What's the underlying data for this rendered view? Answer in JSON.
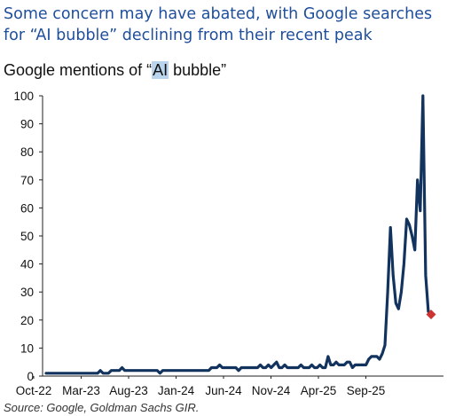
{
  "headline": "Some concern may have abated, with Google searches for “AI bubble” declining from their recent peak",
  "subtitle": {
    "prefix": "Google mentions of “",
    "highlight": "AI",
    "suffix": " bubble”"
  },
  "source": "Source: Google, Goldman Sachs GIR.",
  "colors": {
    "line": "#12335e",
    "marker": "#cc3333",
    "headline": "#1f4e9c",
    "highlight": "#b9d4ec"
  },
  "chart_data": {
    "type": "line",
    "title": "Google mentions of “AI bubble”",
    "ylim": [
      0,
      100
    ],
    "yticks": [
      0,
      10,
      20,
      30,
      40,
      50,
      60,
      70,
      80,
      90,
      100
    ],
    "xtick_labels": [
      "Oct-22",
      "Mar-23",
      "Aug-23",
      "Jan-24",
      "Jun-24",
      "Nov-24",
      "Apr-25",
      "Sep-25"
    ],
    "grid": false,
    "series": [
      {
        "points": [
          [
            0,
            1
          ],
          [
            4,
            1
          ],
          [
            8,
            1
          ],
          [
            12,
            1
          ],
          [
            16,
            1
          ],
          [
            19,
            1
          ],
          [
            20,
            2
          ],
          [
            21,
            1
          ],
          [
            23,
            1
          ],
          [
            24,
            2
          ],
          [
            27,
            2
          ],
          [
            28,
            3
          ],
          [
            29,
            2
          ],
          [
            33,
            2
          ],
          [
            38,
            2
          ],
          [
            41,
            2
          ],
          [
            42,
            1
          ],
          [
            43,
            2
          ],
          [
            47,
            2
          ],
          [
            52,
            2
          ],
          [
            58,
            2
          ],
          [
            60,
            2
          ],
          [
            61,
            3
          ],
          [
            63,
            3
          ],
          [
            64,
            4
          ],
          [
            65,
            3
          ],
          [
            68,
            3
          ],
          [
            70,
            3
          ],
          [
            71,
            2
          ],
          [
            72,
            3
          ],
          [
            75,
            3
          ],
          [
            78,
            3
          ],
          [
            79,
            4
          ],
          [
            80,
            3
          ],
          [
            81,
            3
          ],
          [
            82,
            4
          ],
          [
            83,
            3
          ],
          [
            84,
            4
          ],
          [
            85,
            5
          ],
          [
            86,
            3
          ],
          [
            87,
            3
          ],
          [
            88,
            4
          ],
          [
            89,
            3
          ],
          [
            91,
            3
          ],
          [
            93,
            3
          ],
          [
            94,
            4
          ],
          [
            95,
            3
          ],
          [
            96,
            3
          ],
          [
            97,
            3
          ],
          [
            98,
            4
          ],
          [
            99,
            3
          ],
          [
            100,
            3
          ],
          [
            101,
            4
          ],
          [
            102,
            3
          ],
          [
            103,
            3
          ],
          [
            104,
            7
          ],
          [
            105,
            4
          ],
          [
            106,
            4
          ],
          [
            107,
            5
          ],
          [
            108,
            4
          ],
          [
            109,
            4
          ],
          [
            110,
            4
          ],
          [
            111,
            5
          ],
          [
            112,
            5
          ],
          [
            113,
            3
          ],
          [
            114,
            4
          ],
          [
            116,
            4
          ],
          [
            118,
            4
          ],
          [
            119,
            6
          ],
          [
            120,
            7
          ],
          [
            122,
            7
          ],
          [
            123,
            6
          ],
          [
            124,
            8
          ],
          [
            125,
            11
          ],
          [
            126,
            30
          ],
          [
            127,
            53
          ],
          [
            128,
            36
          ],
          [
            129,
            26
          ],
          [
            130,
            24
          ],
          [
            131,
            30
          ],
          [
            132,
            40
          ],
          [
            133,
            56
          ],
          [
            134,
            54
          ],
          [
            135,
            50
          ],
          [
            136,
            45
          ],
          [
            137,
            70
          ],
          [
            138,
            59
          ],
          [
            139,
            100
          ],
          [
            140,
            36
          ],
          [
            141,
            23
          ],
          [
            142,
            22
          ]
        ]
      }
    ],
    "last_point": {
      "week": 142,
      "value": 22
    }
  }
}
